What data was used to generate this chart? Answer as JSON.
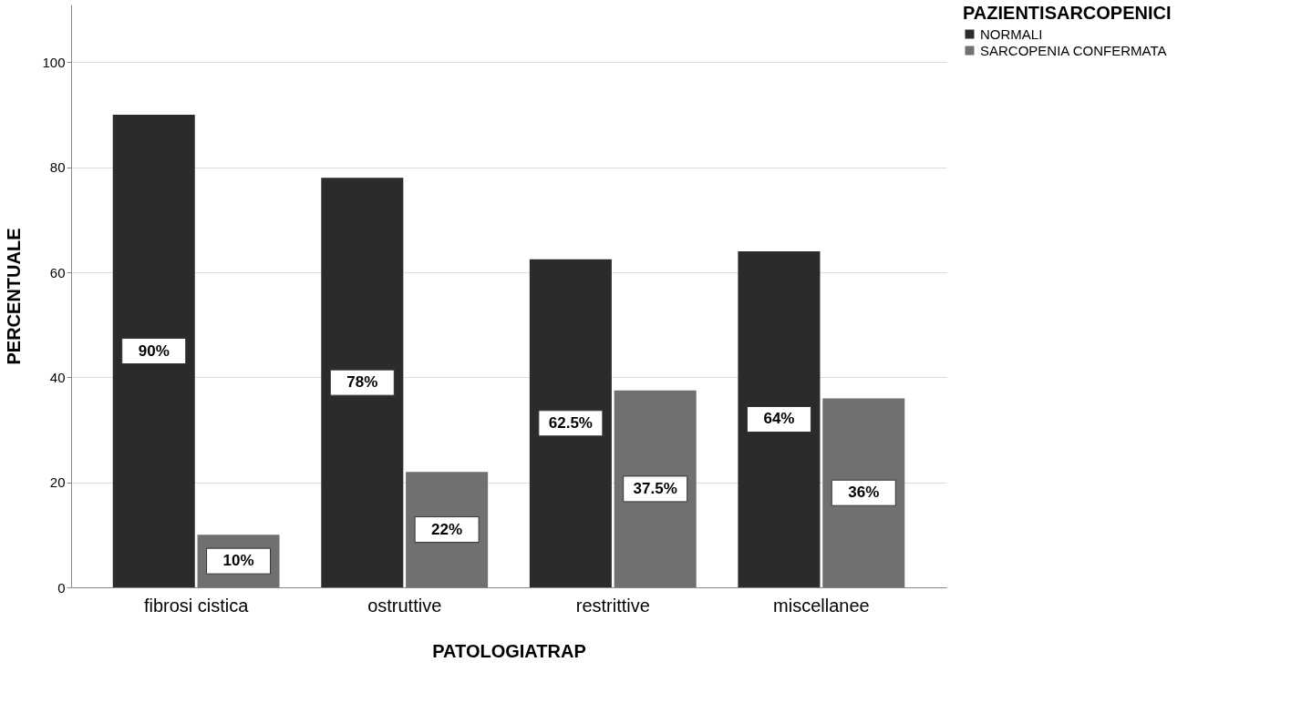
{
  "chart_data": {
    "type": "bar",
    "xlabel": "PATOLOGIATRAP",
    "ylabel": "PERCENTUALE",
    "legend_title": "PAZIENTISARCOPENICI",
    "categories": [
      "fibrosi cistica",
      "ostruttive",
      "restrittive",
      "miscellanee"
    ],
    "series": [
      {
        "name": "NORMALI",
        "color": "#2b2b2b",
        "values": [
          90,
          78,
          62.5,
          64
        ],
        "value_labels": [
          "90%",
          "78%",
          "62.5%",
          "64%"
        ]
      },
      {
        "name": "SARCOPENIA CONFERMATA",
        "color": "#707070",
        "values": [
          10,
          22,
          37.5,
          36
        ],
        "value_labels": [
          "10%",
          "22%",
          "37.5%",
          "36%"
        ]
      }
    ],
    "ylim": [
      0,
      111
    ],
    "yticks": [
      0,
      20,
      40,
      60,
      80,
      100
    ],
    "grid": "y",
    "legend": "top right"
  }
}
